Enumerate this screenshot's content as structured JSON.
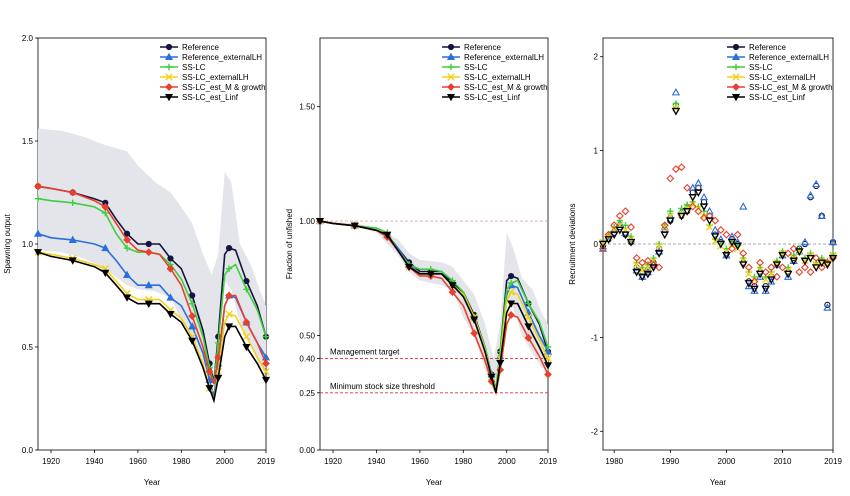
{
  "legend_series": [
    {
      "name": "Reference",
      "color": "#14143c",
      "marker": "circle"
    },
    {
      "name": "Reference_externalLH",
      "color": "#2a6fdb",
      "marker": "triangle-up"
    },
    {
      "name": "SS-LC",
      "color": "#3ecf3e",
      "marker": "plus"
    },
    {
      "name": "SS-LC_externalLH",
      "color": "#f2d31b",
      "marker": "x"
    },
    {
      "name": "SS-LC_est_M & growth",
      "color": "#e8402c",
      "marker": "diamond"
    },
    {
      "name": "SS-LC_est_Linf",
      "color": "#000000",
      "marker": "triangle-down"
    }
  ],
  "chart_data": [
    {
      "type": "line",
      "xlabel": "Year",
      "ylabel": "Spawning output",
      "xlim": [
        1914,
        2019
      ],
      "ylim": [
        0,
        2.0
      ],
      "xticks": [
        1920,
        1940,
        1960,
        1980,
        2000,
        2019
      ],
      "yticks": [
        0.0,
        0.5,
        1.0,
        1.5,
        2.0
      ],
      "ytick_labels": [
        "0.0",
        "0.5",
        "1.0",
        "1.5",
        "2.0"
      ],
      "legend": "top-right",
      "grid": false,
      "band_color": "#e3e5ea",
      "band": {
        "x": [
          1914,
          1925,
          1935,
          1945,
          1955,
          1960,
          1968,
          1975,
          1980,
          1985,
          1990,
          1994,
          1997,
          2000,
          2003,
          2007,
          2012,
          2016,
          2019
        ],
        "lower": [
          0.97,
          0.96,
          0.93,
          0.88,
          0.8,
          0.78,
          0.77,
          0.74,
          0.63,
          0.55,
          0.42,
          0.36,
          0.5,
          0.82,
          0.78,
          0.62,
          0.52,
          0.4,
          0.4
        ],
        "upper": [
          1.56,
          1.55,
          1.52,
          1.48,
          1.45,
          1.38,
          1.3,
          1.25,
          1.18,
          1.1,
          0.95,
          0.85,
          0.95,
          1.35,
          1.3,
          1.0,
          0.9,
          0.78,
          0.7
        ]
      },
      "x": [
        1914,
        1920,
        1930,
        1940,
        1945,
        1950,
        1955,
        1960,
        1965,
        1970,
        1975,
        1980,
        1985,
        1990,
        1993,
        1995,
        1997,
        2000,
        2002,
        2005,
        2010,
        2015,
        2019
      ],
      "series": [
        {
          "name": "Reference",
          "values": [
            1.28,
            1.27,
            1.25,
            1.22,
            1.2,
            1.12,
            1.05,
            1.0,
            1.0,
            1.0,
            0.93,
            0.88,
            0.75,
            0.58,
            0.42,
            0.33,
            0.55,
            0.95,
            0.98,
            0.97,
            0.82,
            0.7,
            0.55
          ]
        },
        {
          "name": "Reference_externalLH",
          "values": [
            1.05,
            1.03,
            1.02,
            1.0,
            0.98,
            0.92,
            0.85,
            0.8,
            0.8,
            0.8,
            0.74,
            0.7,
            0.6,
            0.47,
            0.34,
            0.26,
            0.42,
            0.7,
            0.75,
            0.74,
            0.62,
            0.52,
            0.45
          ]
        },
        {
          "name": "SS-LC",
          "values": [
            1.22,
            1.21,
            1.2,
            1.18,
            1.15,
            1.05,
            0.98,
            0.96,
            0.96,
            0.95,
            0.9,
            0.83,
            0.71,
            0.55,
            0.4,
            0.32,
            0.52,
            0.85,
            0.88,
            0.9,
            0.78,
            0.68,
            0.55
          ]
        },
        {
          "name": "SS-LC_externalLH",
          "values": [
            0.96,
            0.95,
            0.93,
            0.9,
            0.88,
            0.82,
            0.76,
            0.73,
            0.73,
            0.73,
            0.68,
            0.64,
            0.55,
            0.42,
            0.3,
            0.24,
            0.38,
            0.62,
            0.66,
            0.65,
            0.55,
            0.45,
            0.38
          ]
        },
        {
          "name": "SS-LC_est_M & growth",
          "values": [
            1.28,
            1.27,
            1.25,
            1.21,
            1.18,
            1.1,
            1.02,
            0.97,
            0.96,
            0.95,
            0.88,
            0.8,
            0.65,
            0.5,
            0.38,
            0.32,
            0.45,
            0.7,
            0.75,
            0.75,
            0.62,
            0.52,
            0.42
          ]
        },
        {
          "name": "SS-LC_est_Linf",
          "values": [
            0.96,
            0.94,
            0.92,
            0.89,
            0.86,
            0.8,
            0.74,
            0.71,
            0.71,
            0.71,
            0.66,
            0.62,
            0.53,
            0.4,
            0.3,
            0.24,
            0.35,
            0.55,
            0.6,
            0.6,
            0.5,
            0.42,
            0.34
          ]
        }
      ]
    },
    {
      "type": "line",
      "xlabel": "Year",
      "ylabel": "Fraction of unfished",
      "xlim": [
        1914,
        2019
      ],
      "ylim": [
        0,
        1.8
      ],
      "xticks": [
        1920,
        1940,
        1960,
        1980,
        2000,
        2019
      ],
      "yticks": [
        0.0,
        0.25,
        0.4,
        0.5,
        1.0,
        1.5
      ],
      "ytick_labels": [
        "0.00",
        "0.25",
        "0.40",
        "0.50",
        "1.00",
        "1.50"
      ],
      "legend": "top-right",
      "grid": false,
      "reference_lines": [
        {
          "y": 1.0,
          "label": "",
          "color": "#e8a0a0"
        },
        {
          "y": 0.4,
          "label": "Management target",
          "color": "#e03030"
        },
        {
          "y": 0.25,
          "label": "Minimum stock size threshold",
          "color": "#e03030"
        }
      ],
      "band_color": "#e3e5ea",
      "band": {
        "x": [
          1914,
          1930,
          1940,
          1950,
          1955,
          1960,
          1970,
          1975,
          1980,
          1985,
          1990,
          1994,
          1997,
          2000,
          2003,
          2007,
          2012,
          2016,
          2019
        ],
        "lower": [
          1.0,
          0.98,
          0.95,
          0.85,
          0.78,
          0.74,
          0.72,
          0.7,
          0.58,
          0.5,
          0.35,
          0.26,
          0.4,
          0.65,
          0.62,
          0.5,
          0.42,
          0.36,
          0.35
        ],
        "upper": [
          1.0,
          0.99,
          0.97,
          0.92,
          0.86,
          0.83,
          0.82,
          0.8,
          0.74,
          0.68,
          0.55,
          0.4,
          0.55,
          0.95,
          0.88,
          0.75,
          0.7,
          0.6,
          0.55
        ]
      },
      "x": [
        1914,
        1920,
        1930,
        1940,
        1945,
        1950,
        1955,
        1960,
        1965,
        1970,
        1975,
        1980,
        1985,
        1990,
        1993,
        1995,
        1997,
        2000,
        2002,
        2005,
        2010,
        2015,
        2019
      ],
      "series": [
        {
          "name": "Reference",
          "values": [
            1.0,
            0.99,
            0.98,
            0.96,
            0.94,
            0.88,
            0.82,
            0.78,
            0.78,
            0.78,
            0.73,
            0.69,
            0.59,
            0.45,
            0.33,
            0.26,
            0.43,
            0.74,
            0.76,
            0.75,
            0.64,
            0.55,
            0.43
          ]
        },
        {
          "name": "Reference_externalLH",
          "values": [
            1.0,
            0.99,
            0.98,
            0.96,
            0.94,
            0.88,
            0.81,
            0.77,
            0.77,
            0.77,
            0.72,
            0.68,
            0.58,
            0.45,
            0.33,
            0.25,
            0.41,
            0.68,
            0.72,
            0.71,
            0.6,
            0.5,
            0.43
          ]
        },
        {
          "name": "SS-LC",
          "values": [
            1.0,
            0.99,
            0.98,
            0.97,
            0.95,
            0.87,
            0.81,
            0.79,
            0.79,
            0.78,
            0.74,
            0.69,
            0.58,
            0.45,
            0.33,
            0.27,
            0.43,
            0.7,
            0.73,
            0.74,
            0.64,
            0.56,
            0.45
          ]
        },
        {
          "name": "SS-LC_externalLH",
          "values": [
            1.0,
            0.99,
            0.98,
            0.96,
            0.94,
            0.87,
            0.8,
            0.77,
            0.77,
            0.77,
            0.72,
            0.68,
            0.58,
            0.44,
            0.32,
            0.25,
            0.4,
            0.65,
            0.69,
            0.68,
            0.58,
            0.48,
            0.4
          ]
        },
        {
          "name": "SS-LC_est_M & growth",
          "values": [
            1.0,
            0.99,
            0.98,
            0.96,
            0.93,
            0.87,
            0.8,
            0.76,
            0.76,
            0.75,
            0.69,
            0.63,
            0.51,
            0.39,
            0.3,
            0.25,
            0.35,
            0.55,
            0.59,
            0.58,
            0.49,
            0.41,
            0.33
          ]
        },
        {
          "name": "SS-LC_est_Linf",
          "values": [
            1.0,
            0.99,
            0.98,
            0.96,
            0.94,
            0.87,
            0.8,
            0.77,
            0.77,
            0.77,
            0.72,
            0.67,
            0.57,
            0.43,
            0.32,
            0.25,
            0.38,
            0.6,
            0.64,
            0.64,
            0.54,
            0.45,
            0.37
          ]
        }
      ]
    },
    {
      "type": "scatter",
      "xlabel": "Year",
      "ylabel": "Recruitment deviations",
      "xlim": [
        1978,
        2019
      ],
      "ylim": [
        -2.2,
        2.2
      ],
      "xticks": [
        1980,
        1990,
        2000,
        2010,
        2019
      ],
      "yticks": [
        -2,
        -1,
        0,
        1,
        2
      ],
      "ytick_labels": [
        "-2",
        "-1",
        "0",
        "1",
        "2"
      ],
      "legend": "top-right",
      "grid": false,
      "reference_lines": [
        {
          "y": 0,
          "label": "",
          "color": "#aaaaaa"
        }
      ],
      "x": [
        1978,
        1979,
        1980,
        1981,
        1982,
        1983,
        1984,
        1985,
        1986,
        1987,
        1988,
        1989,
        1990,
        1991,
        1992,
        1993,
        1994,
        1995,
        1996,
        1997,
        1998,
        1999,
        2000,
        2001,
        2002,
        2003,
        2004,
        2005,
        2006,
        2007,
        2008,
        2009,
        2010,
        2011,
        2012,
        2013,
        2014,
        2015,
        2016,
        2017,
        2018,
        2019
      ],
      "series": [
        {
          "name": "Reference",
          "values": [
            -0.02,
            0.05,
            0.12,
            0.18,
            0.1,
            0.02,
            -0.25,
            -0.3,
            -0.28,
            -0.2,
            -0.05,
            0.15,
            0.25,
            1.48,
            0.3,
            0.35,
            0.55,
            0.6,
            0.45,
            0.3,
            0.1,
            0.02,
            -0.1,
            0.05,
            0.0,
            -0.2,
            -0.4,
            -0.45,
            -0.3,
            -0.45,
            -0.35,
            -0.2,
            -0.1,
            -0.3,
            -0.15,
            -0.05,
            0.0,
            0.5,
            0.62,
            0.3,
            -0.65,
            0.02
          ]
        },
        {
          "name": "Reference_externalLH",
          "values": [
            -0.05,
            0.08,
            0.15,
            0.22,
            0.12,
            0.05,
            -0.28,
            -0.35,
            -0.3,
            -0.22,
            -0.08,
            0.18,
            0.3,
            1.62,
            0.35,
            0.4,
            0.6,
            0.65,
            0.5,
            0.35,
            0.15,
            0.05,
            -0.12,
            0.08,
            0.02,
            0.4,
            -0.45,
            -0.5,
            -0.35,
            -0.5,
            -0.4,
            -0.22,
            -0.12,
            -0.35,
            -0.18,
            -0.08,
            0.02,
            0.52,
            0.64,
            0.3,
            -0.68,
            0.02
          ]
        },
        {
          "name": "SS-LC",
          "values": [
            0.0,
            0.1,
            0.18,
            0.25,
            0.2,
            0.08,
            -0.2,
            -0.25,
            -0.22,
            -0.15,
            0.0,
            0.2,
            0.35,
            1.5,
            0.38,
            0.42,
            0.45,
            0.4,
            0.35,
            0.2,
            0.05,
            0.0,
            -0.05,
            0.02,
            -0.02,
            -0.15,
            -0.3,
            -0.35,
            -0.25,
            -0.35,
            -0.3,
            -0.18,
            -0.08,
            -0.25,
            -0.12,
            -0.05,
            -0.15,
            -0.1,
            -0.2,
            -0.15,
            -0.18,
            -0.1
          ]
        },
        {
          "name": "SS-LC_externalLH",
          "values": [
            0.02,
            0.08,
            0.15,
            0.2,
            0.15,
            0.05,
            -0.22,
            -0.28,
            -0.25,
            -0.18,
            -0.02,
            0.18,
            0.3,
            1.45,
            0.32,
            0.38,
            0.42,
            0.38,
            0.3,
            0.18,
            0.03,
            -0.02,
            -0.08,
            0.0,
            -0.05,
            -0.18,
            -0.32,
            -0.38,
            -0.28,
            -0.38,
            -0.32,
            -0.2,
            -0.1,
            -0.28,
            -0.15,
            -0.08,
            -0.18,
            -0.12,
            -0.22,
            -0.18,
            -0.2,
            -0.12
          ]
        },
        {
          "name": "SS-LC_est_M & growth",
          "values": [
            -0.05,
            0.1,
            0.2,
            0.3,
            0.35,
            0.18,
            -0.15,
            -0.2,
            -0.18,
            -0.22,
            -0.25,
            0.2,
            0.7,
            0.8,
            0.82,
            0.6,
            0.4,
            0.35,
            0.28,
            0.3,
            0.25,
            0.15,
            0.1,
            -0.05,
            0.1,
            -0.1,
            -0.25,
            -0.4,
            -0.2,
            -0.3,
            -0.25,
            -0.35,
            -0.25,
            -0.1,
            -0.05,
            -0.3,
            -0.25,
            -0.3,
            -0.15,
            -0.25,
            -0.2,
            -0.15
          ]
        },
        {
          "name": "SS-LC_est_Linf",
          "values": [
            0.0,
            0.05,
            0.1,
            0.15,
            0.1,
            0.02,
            -0.3,
            -0.35,
            -0.32,
            -0.25,
            -0.1,
            0.1,
            0.25,
            1.42,
            0.3,
            0.35,
            0.5,
            0.55,
            0.4,
            0.25,
            0.08,
            0.0,
            -0.12,
            0.02,
            -0.02,
            -0.22,
            -0.42,
            -0.48,
            -0.32,
            -0.48,
            -0.38,
            -0.22,
            -0.12,
            -0.32,
            -0.18,
            -0.08,
            -0.18,
            -0.15,
            -0.25,
            -0.2,
            -0.22,
            -0.15
          ]
        }
      ]
    }
  ]
}
